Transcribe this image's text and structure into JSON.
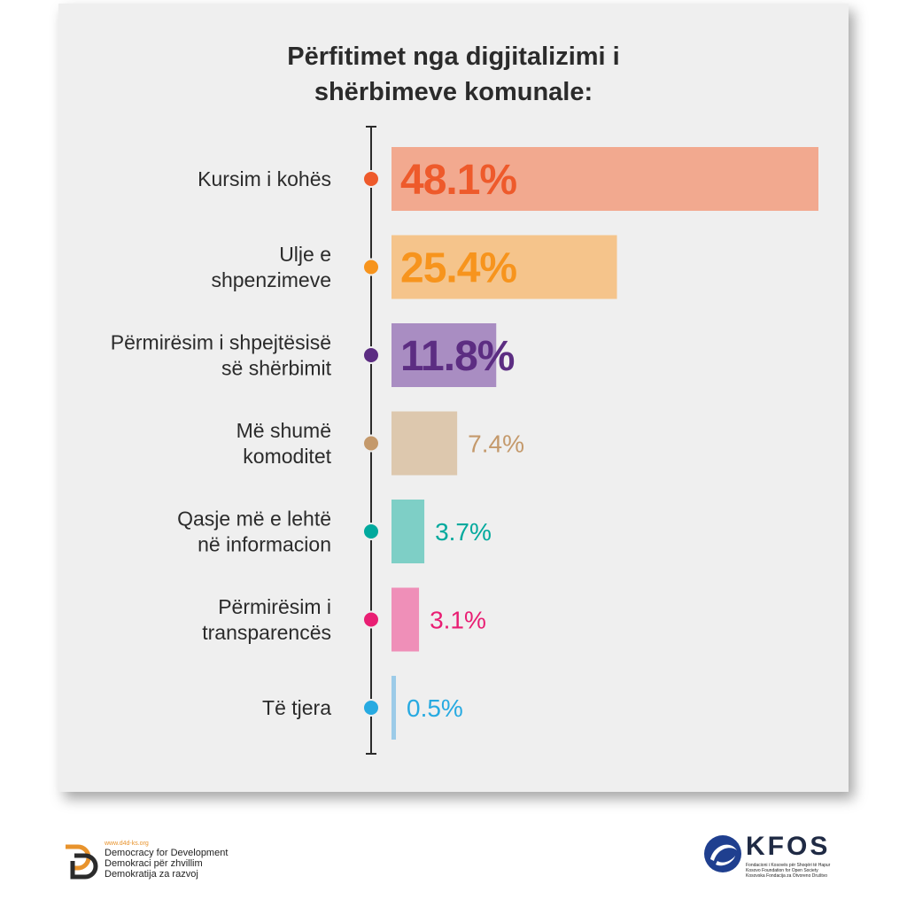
{
  "chart_data": {
    "type": "bar",
    "orientation": "horizontal",
    "title": [
      "Përfitimet nga digjitalizimi i",
      "shërbimeve komunale:"
    ],
    "categories": [
      [
        "Kursim i kohës"
      ],
      [
        "Ulje e",
        "shpenzimeve"
      ],
      [
        "Përmirësim i shpejtësisë",
        "së shërbimit"
      ],
      [
        "Më shumë",
        "komoditet"
      ],
      [
        "Qasje më e lehtë",
        "në informacion"
      ],
      [
        "Përmirësim i",
        "transparencës"
      ],
      [
        "Të tjera"
      ]
    ],
    "values": [
      48.1,
      25.4,
      11.8,
      7.4,
      3.7,
      3.1,
      0.5
    ],
    "value_labels": [
      "48.1%",
      "25.4%",
      "11.8%",
      "7.4%",
      "3.7%",
      "3.1%",
      "0.5%"
    ],
    "unit": "%",
    "colors": {
      "bars": [
        "#f2a98f",
        "#f5c48b",
        "#a98dc2",
        "#ddc8ae",
        "#7ecfc6",
        "#ef8fb8",
        "#9ccbe8"
      ],
      "dots": [
        "#ee5a2b",
        "#f7941d",
        "#5c2d82",
        "#c4996b",
        "#00a99d",
        "#e91e73",
        "#27aae1"
      ],
      "labels": [
        "#ee5a2b",
        "#f7941d",
        "#5c2d82",
        "#c4996b",
        "#00a99d",
        "#e91e73",
        "#27aae1"
      ]
    },
    "grid": false,
    "legend": "none"
  },
  "footer": {
    "d4d": {
      "url": "www.d4d-ks.org",
      "lines": [
        "Democracy for Development",
        "Demokraci për zhvillim",
        "Demokratija za razvoj"
      ]
    },
    "kfos": {
      "name": "KFOS",
      "lines": [
        "Fondacioni i Kosovës për Shoqëri të Hapur",
        "Kosovo Foundation for Open Society",
        "Kosovska Fondacija za Otvoreno Društvo"
      ]
    }
  }
}
